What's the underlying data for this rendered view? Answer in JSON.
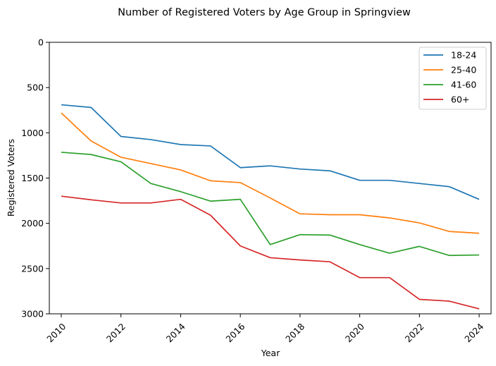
{
  "chart_data": {
    "type": "line",
    "title": "Number of Registered Voters by Age Group in Springview",
    "xlabel": "Year",
    "ylabel": "Registered Voters",
    "x": [
      2010,
      2011,
      2012,
      2013,
      2014,
      2015,
      2016,
      2017,
      2018,
      2019,
      2020,
      2021,
      2022,
      2023,
      2024
    ],
    "xticks": [
      "2010",
      "2012",
      "2014",
      "2016",
      "2018",
      "2020",
      "2022",
      "2024"
    ],
    "yticks": [
      "0",
      "500",
      "1000",
      "1500",
      "2000",
      "2500",
      "3000"
    ],
    "ylim": [
      0,
      3000
    ],
    "y_inverted": true,
    "legend_position": "top-right",
    "series": [
      {
        "name": "18-24",
        "color": "#1f77b4",
        "values": [
          690,
          720,
          1040,
          1075,
          1130,
          1145,
          1385,
          1365,
          1400,
          1420,
          1525,
          1525,
          1560,
          1595,
          1735
        ]
      },
      {
        "name": "25-40",
        "color": "#ff7f0e",
        "values": [
          780,
          1090,
          1270,
          1340,
          1410,
          1530,
          1550,
          1720,
          1895,
          1905,
          1905,
          1940,
          1995,
          2090,
          2110
        ]
      },
      {
        "name": "41-60",
        "color": "#2ca02c",
        "values": [
          1215,
          1240,
          1320,
          1560,
          1650,
          1755,
          1735,
          2235,
          2125,
          2130,
          2235,
          2330,
          2255,
          2355,
          2350
        ]
      },
      {
        "name": "60+",
        "color": "#d62728",
        "values": [
          1700,
          1740,
          1775,
          1775,
          1735,
          1910,
          2250,
          2380,
          2405,
          2425,
          2600,
          2600,
          2840,
          2860,
          2945
        ]
      }
    ]
  }
}
